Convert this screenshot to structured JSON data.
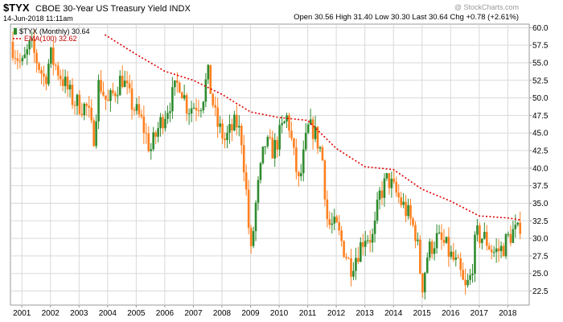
{
  "header": {
    "symbol": "$TYX",
    "name": "CBOE 30-Year US Treasury Yield INDX",
    "date": "14-Jun-2018 11:11am",
    "quote": "Open 30.56  High 31.40  Low 30.30  Last 30.64  Chg +0.78 (+2.61%)",
    "watermark": "@ StockCharts.com"
  },
  "colors": {
    "up": "#2e8b2e",
    "down": "#ff7f1e",
    "ema": "#e00000",
    "grid": "#d9d9d9",
    "axis": "#999999"
  },
  "chart_data": {
    "type": "candlestick",
    "interval": "monthly",
    "legend": [
      {
        "label": "$TYX (Monthly) 30.64",
        "style": "candles"
      },
      {
        "label": "EMA(100) 32.62",
        "style": "dotted-red"
      }
    ],
    "legend_position": "top-left",
    "x_ticks": [
      "2001",
      "2002",
      "2003",
      "2004",
      "2005",
      "2006",
      "2007",
      "2008",
      "2009",
      "2010",
      "2011",
      "2012",
      "2013",
      "2014",
      "2015",
      "2016",
      "2017",
      "2018"
    ],
    "x_range": [
      2000.6,
      2018.75
    ],
    "y_ticks": [
      "22.5",
      "25.0",
      "27.5",
      "30.0",
      "32.5",
      "35.0",
      "37.5",
      "40.0",
      "42.5",
      "45.0",
      "47.5",
      "50.0",
      "52.5",
      "55.0",
      "57.5",
      "60.0"
    ],
    "y_range": [
      20.5,
      60.5
    ],
    "y_axis_side": "right",
    "grid": true,
    "close_anchors": [
      [
        2000.6,
        58.0
      ],
      [
        2001.0,
        54.5
      ],
      [
        2001.3,
        57.5
      ],
      [
        2001.8,
        52.5
      ],
      [
        2002.0,
        56.0
      ],
      [
        2002.5,
        52.0
      ],
      [
        2002.8,
        49.5
      ],
      [
        2003.3,
        48.5
      ],
      [
        2003.5,
        44.0
      ],
      [
        2003.7,
        52.5
      ],
      [
        2004.0,
        49.0
      ],
      [
        2004.5,
        53.0
      ],
      [
        2004.8,
        49.5
      ],
      [
        2005.2,
        46.5
      ],
      [
        2005.5,
        42.5
      ],
      [
        2005.8,
        46.0
      ],
      [
        2006.3,
        50.5
      ],
      [
        2006.5,
        52.5
      ],
      [
        2006.8,
        48.5
      ],
      [
        2007.3,
        49.5
      ],
      [
        2007.5,
        53.5
      ],
      [
        2007.8,
        46.5
      ],
      [
        2008.1,
        44.0
      ],
      [
        2008.5,
        46.5
      ],
      [
        2008.7,
        44.0
      ],
      [
        2008.9,
        34.0
      ],
      [
        2009.0,
        27.0
      ],
      [
        2009.2,
        35.5
      ],
      [
        2009.5,
        43.5
      ],
      [
        2009.8,
        42.5
      ],
      [
        2010.3,
        47.5
      ],
      [
        2010.5,
        42.0
      ],
      [
        2010.7,
        37.5
      ],
      [
        2011.0,
        45.5
      ],
      [
        2011.2,
        45.5
      ],
      [
        2011.5,
        42.0
      ],
      [
        2011.7,
        32.0
      ],
      [
        2012.0,
        31.5
      ],
      [
        2012.5,
        26.0
      ],
      [
        2012.8,
        28.5
      ],
      [
        2013.0,
        30.5
      ],
      [
        2013.3,
        30.0
      ],
      [
        2013.5,
        36.0
      ],
      [
        2013.8,
        38.5
      ],
      [
        2014.0,
        37.0
      ],
      [
        2014.5,
        33.5
      ],
      [
        2014.8,
        30.5
      ],
      [
        2015.0,
        23.0
      ],
      [
        2015.2,
        28.0
      ],
      [
        2015.5,
        30.0
      ],
      [
        2015.8,
        29.0
      ],
      [
        2016.0,
        27.5
      ],
      [
        2016.3,
        25.5
      ],
      [
        2016.5,
        22.5
      ],
      [
        2016.7,
        24.5
      ],
      [
        2016.9,
        30.5
      ],
      [
        2017.2,
        30.0
      ],
      [
        2017.5,
        28.0
      ],
      [
        2017.8,
        28.5
      ],
      [
        2018.0,
        30.0
      ],
      [
        2018.2,
        31.0
      ],
      [
        2018.45,
        30.64
      ]
    ],
    "ema_anchors": [
      [
        2003.9,
        59.0
      ],
      [
        2005.0,
        56.2
      ],
      [
        2006.0,
        53.8
      ],
      [
        2007.0,
        52.5
      ],
      [
        2008.0,
        50.5
      ],
      [
        2009.0,
        48.0
      ],
      [
        2010.0,
        47.2
      ],
      [
        2011.0,
        46.8
      ],
      [
        2012.0,
        42.8
      ],
      [
        2013.0,
        40.2
      ],
      [
        2014.0,
        39.8
      ],
      [
        2015.0,
        37.0
      ],
      [
        2016.0,
        35.3
      ],
      [
        2017.0,
        33.2
      ],
      [
        2018.0,
        32.9
      ],
      [
        2018.45,
        32.62
      ]
    ]
  }
}
